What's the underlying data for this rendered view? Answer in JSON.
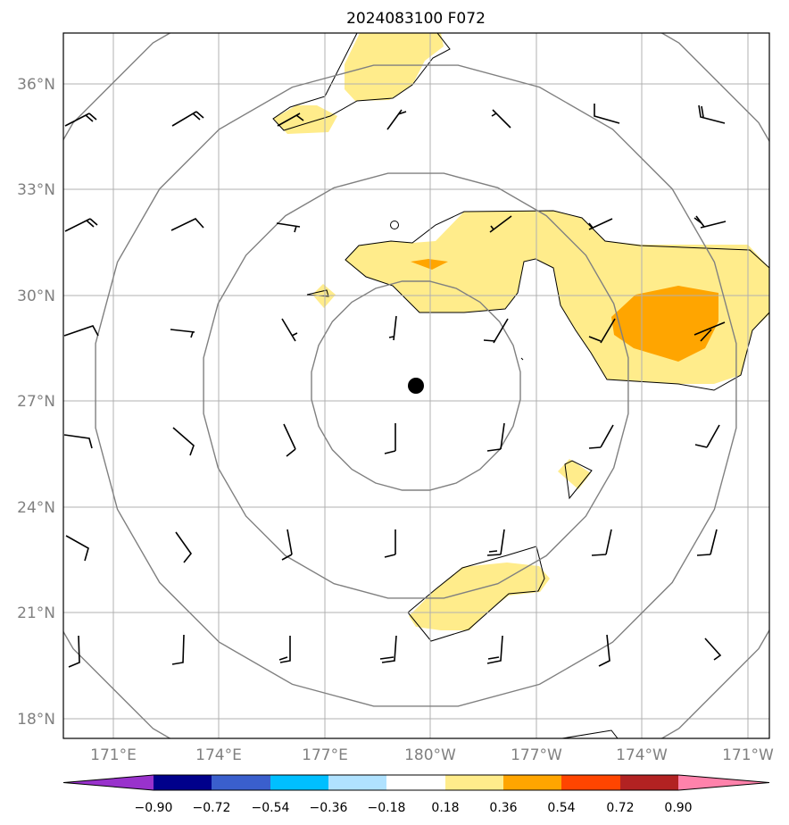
{
  "title": "2024083100 F072",
  "axes": {
    "longitude_ticks": [
      "171°E",
      "174°E",
      "177°E",
      "180°W",
      "177°W",
      "174°W",
      "171°W"
    ],
    "latitude_ticks": [
      "36°N",
      "33°N",
      "30°N",
      "27°N",
      "24°N",
      "21°N",
      "18°N"
    ],
    "grid": true
  },
  "storm_center": {
    "lat": 27.45,
    "lon": 180.4
  },
  "colorbar": {
    "levels": [
      "−0.90",
      "−0.72",
      "−0.54",
      "−0.36",
      "−0.18",
      "0.18",
      "0.36",
      "0.54",
      "0.72",
      "0.90"
    ],
    "colors": [
      "#9932cc",
      "#00008b",
      "#3a5fcd",
      "#00bfff",
      "#b0e2ff",
      "#ffffff",
      "#ffec8b",
      "#ffa500",
      "#ff4500",
      "#b22222",
      "#ff82ab"
    ],
    "extend": "both"
  },
  "colors": {
    "fill_light": "#ffec8b",
    "fill_orange": "#ffa500",
    "range_ring": "#808080",
    "grid": "#b0b0b0",
    "barb": "#000000"
  }
}
